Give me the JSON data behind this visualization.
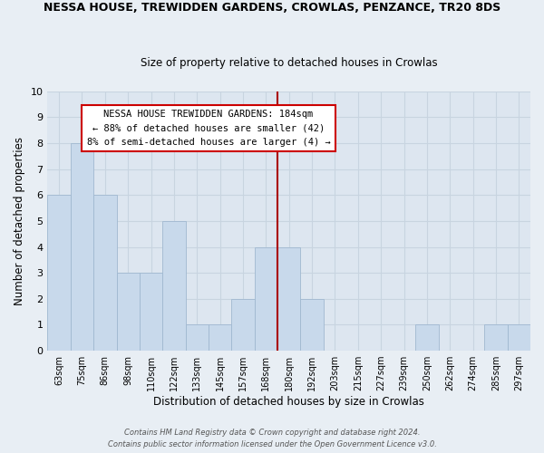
{
  "title": "NESSA HOUSE, TREWIDDEN GARDENS, CROWLAS, PENZANCE, TR20 8DS",
  "subtitle": "Size of property relative to detached houses in Crowlas",
  "xlabel": "Distribution of detached houses by size in Crowlas",
  "ylabel": "Number of detached properties",
  "bar_labels": [
    "63sqm",
    "75sqm",
    "86sqm",
    "98sqm",
    "110sqm",
    "122sqm",
    "133sqm",
    "145sqm",
    "157sqm",
    "168sqm",
    "180sqm",
    "192sqm",
    "203sqm",
    "215sqm",
    "227sqm",
    "239sqm",
    "250sqm",
    "262sqm",
    "274sqm",
    "285sqm",
    "297sqm"
  ],
  "bar_values": [
    6,
    8,
    6,
    3,
    3,
    5,
    1,
    1,
    2,
    4,
    4,
    2,
    0,
    0,
    0,
    0,
    1,
    0,
    0,
    1,
    1
  ],
  "bar_color": "#c8d9eb",
  "bar_edge_color": "#a0b8d0",
  "reference_line_x": 10.0,
  "reference_line_color": "#aa0000",
  "ylim": [
    0,
    10
  ],
  "yticks": [
    0,
    1,
    2,
    3,
    4,
    5,
    6,
    7,
    8,
    9,
    10
  ],
  "annotation_title": "NESSA HOUSE TREWIDDEN GARDENS: 184sqm",
  "annotation_line1": "← 88% of detached houses are smaller (42)",
  "annotation_line2": "8% of semi-detached houses are larger (4) →",
  "footer1": "Contains HM Land Registry data © Crown copyright and database right 2024.",
  "footer2": "Contains public sector information licensed under the Open Government Licence v3.0.",
  "grid_color": "#c8d4e0",
  "background_color": "#e8eef4",
  "plot_bg_color": "#dde6f0"
}
